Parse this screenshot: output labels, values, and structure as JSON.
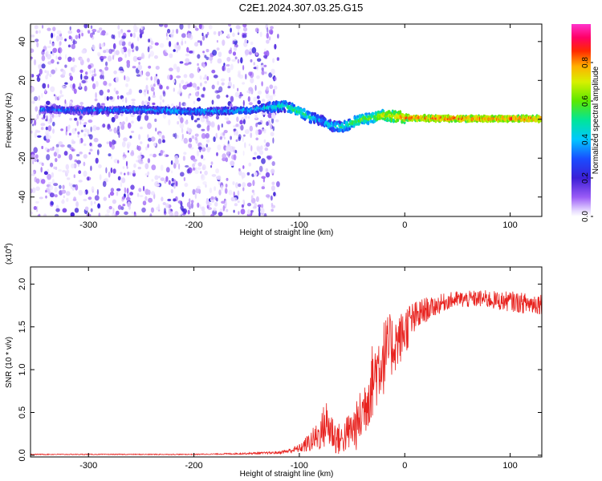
{
  "figure_title": "C2E1.2024.307.03.25.G15",
  "chart_data": [
    {
      "type": "heatmap",
      "title": "C2E1.2024.307.03.25.G15",
      "xlabel": "Height of straight line (km)",
      "ylabel": "Frequency (Hz)",
      "xlim": [
        -355,
        130
      ],
      "ylim": [
        -50,
        49
      ],
      "x_ticks": [
        -300,
        -200,
        -100,
        0,
        100
      ],
      "y_ticks": [
        -40,
        -20,
        0,
        20,
        40
      ],
      "grid": false,
      "colormap": "rainbow (violet-blue-cyan-green-yellow-red-magenta)",
      "colorbar": {
        "label": "Normalized spectral amplitude",
        "range": [
          0,
          1
        ],
        "ticks": [
          0.0,
          0.2,
          0.4,
          0.6,
          0.8
        ]
      },
      "ridge": {
        "description": "dominant frequency ridge vs height",
        "x": [
          -340,
          -300,
          -250,
          -200,
          -150,
          -130,
          -115,
          -100,
          -90,
          -80,
          -72,
          -60,
          -50,
          -40,
          -30,
          -20,
          -10,
          0,
          20,
          60,
          100,
          130
        ],
        "y": [
          5,
          4.5,
          5,
          4,
          4.5,
          6,
          7,
          4,
          1,
          0,
          -3,
          -4,
          -2,
          0,
          1,
          2,
          1.5,
          0.8,
          0.5,
          0.3,
          0.3,
          0.3
        ],
        "amplitude": [
          0.35,
          0.35,
          0.4,
          0.4,
          0.42,
          0.45,
          0.5,
          0.55,
          0.5,
          0.4,
          0.45,
          0.5,
          0.55,
          0.6,
          0.6,
          0.7,
          0.75,
          0.8,
          0.85,
          0.85,
          0.85,
          0.85
        ]
      },
      "noise_region_x": [
        -355,
        -120
      ]
    },
    {
      "type": "line",
      "xlabel": "Height of straight line (km)",
      "ylabel": "SNR (10 * v/v)",
      "y_multiplier_label": "(x10",
      "y_multiplier_exp": "4",
      "y_multiplier_close": ")",
      "xlim": [
        -355,
        130
      ],
      "ylim": [
        -0.02,
        2.2
      ],
      "x_ticks": [
        -300,
        -200,
        -100,
        0,
        100
      ],
      "y_ticks": [
        0.0,
        0.5,
        1.0,
        1.5,
        2.0
      ],
      "grid": false,
      "line_color": "#e8231f",
      "series": [
        {
          "x": [
            -355,
            -300,
            -250,
            -200,
            -150,
            -120,
            -110,
            -100,
            -90,
            -80,
            -75,
            -70,
            -65,
            -60,
            -55,
            -50,
            -45,
            -40,
            -35,
            -30,
            -25,
            -20,
            -15,
            -10,
            -5,
            0,
            5,
            10,
            15,
            20,
            25,
            30,
            40,
            50,
            60,
            70,
            80,
            90,
            100,
            110,
            120,
            130
          ],
          "values": [
            0.01,
            0.01,
            0.01,
            0.01,
            0.02,
            0.03,
            0.05,
            0.08,
            0.15,
            0.25,
            0.38,
            0.3,
            0.2,
            0.18,
            0.25,
            0.3,
            0.35,
            0.5,
            0.7,
            0.9,
            1.05,
            1.15,
            1.25,
            1.3,
            1.35,
            1.45,
            1.55,
            1.6,
            1.65,
            1.7,
            1.72,
            1.75,
            1.8,
            1.82,
            1.82,
            1.83,
            1.82,
            1.8,
            1.8,
            1.78,
            1.77,
            1.78
          ],
          "noise_amplitude": [
            0.005,
            0.005,
            0.005,
            0.005,
            0.01,
            0.015,
            0.03,
            0.05,
            0.12,
            0.2,
            0.3,
            0.25,
            0.2,
            0.18,
            0.22,
            0.25,
            0.3,
            0.35,
            0.4,
            0.45,
            0.45,
            0.45,
            0.4,
            0.35,
            0.3,
            0.3,
            0.25,
            0.2,
            0.18,
            0.15,
            0.12,
            0.12,
            0.1,
            0.1,
            0.1,
            0.1,
            0.11,
            0.11,
            0.12,
            0.12,
            0.13,
            0.13
          ]
        }
      ]
    }
  ]
}
